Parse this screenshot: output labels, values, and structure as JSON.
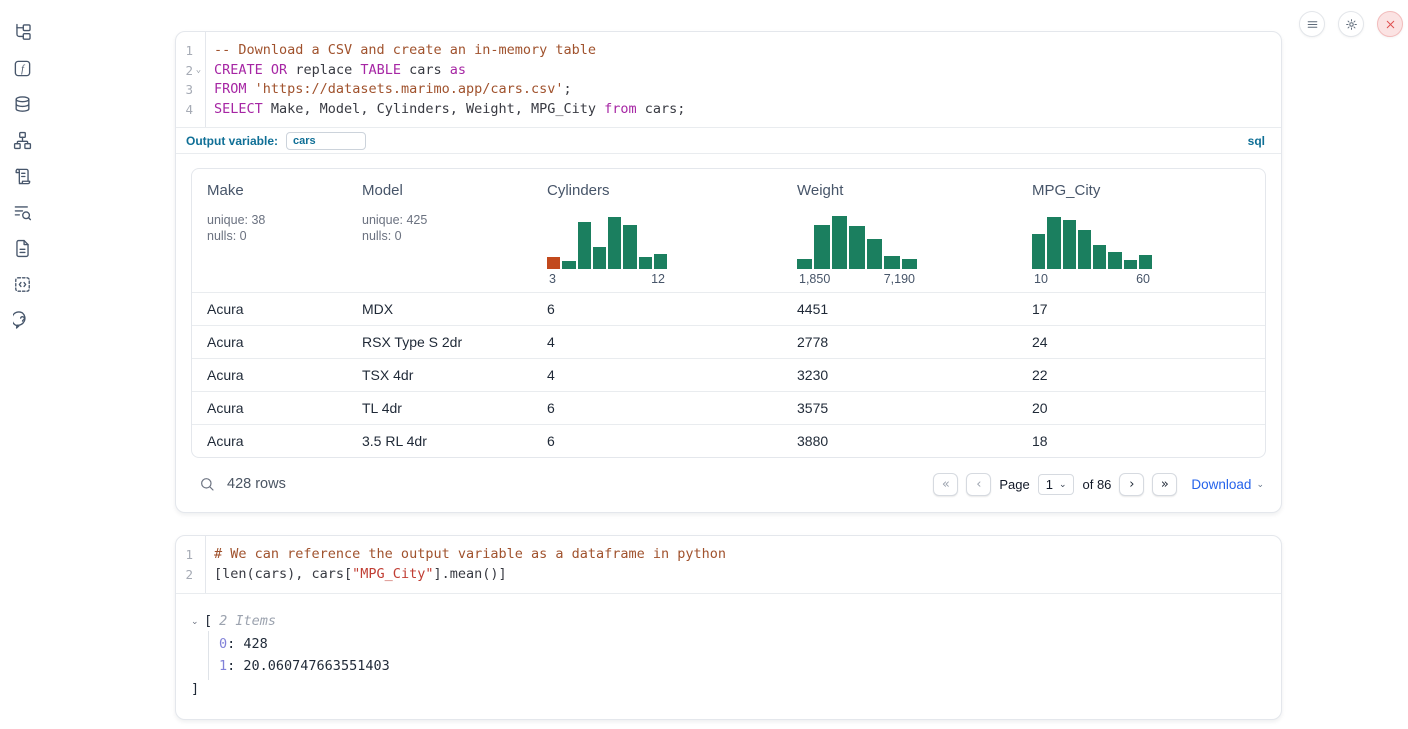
{
  "sidebar": {
    "icons": [
      "file-tree",
      "function-square",
      "database",
      "dependency-graph",
      "scroll-log",
      "text-search",
      "document",
      "code-snippets",
      "help"
    ]
  },
  "window_controls": {
    "icons": [
      "menu",
      "settings",
      "close"
    ]
  },
  "colors": {
    "keyword": "#a626a4",
    "comment": "#a0522d",
    "sql_string": "#a0522d",
    "python_string": "#c03d33",
    "histogram_green": "#1b7f5f",
    "histogram_highlight": "#c2491d",
    "download_blue": "#2563eb",
    "label_blue": "#0f6f96",
    "close_red": "#df5050"
  },
  "cells": [
    {
      "type": "sql",
      "code_lines": [
        {
          "num": "1",
          "fold": false,
          "tokens": [
            {
              "c": "com",
              "t": "-- Download a CSV and create an in-memory table"
            }
          ]
        },
        {
          "num": "2",
          "fold": true,
          "tokens": [
            {
              "c": "kw",
              "t": "CREATE"
            },
            {
              "c": "pl",
              "t": " "
            },
            {
              "c": "kw",
              "t": "OR"
            },
            {
              "c": "pl",
              "t": " replace "
            },
            {
              "c": "kw",
              "t": "TABLE"
            },
            {
              "c": "pl",
              "t": " cars "
            },
            {
              "c": "kw",
              "t": "as"
            }
          ]
        },
        {
          "num": "3",
          "fold": false,
          "tokens": [
            {
              "c": "kw",
              "t": "FROM"
            },
            {
              "c": "pl",
              "t": " "
            },
            {
              "c": "str",
              "t": "'https://datasets.marimo.app/cars.csv'"
            },
            {
              "c": "pl",
              "t": ";"
            }
          ]
        },
        {
          "num": "4",
          "fold": false,
          "tokens": [
            {
              "c": "kw",
              "t": "SELECT"
            },
            {
              "c": "pl",
              "t": " Make, Model, Cylinders, Weight, MPG_City "
            },
            {
              "c": "kw",
              "t": "from"
            },
            {
              "c": "pl",
              "t": " cars;"
            }
          ]
        }
      ],
      "output_variable_label": "Output variable:",
      "output_variable_value": "cars",
      "language_badge": "sql",
      "table": {
        "columns": [
          {
            "name": "Make",
            "stats": [
              "unique: 38",
              "nulls: 0"
            ]
          },
          {
            "name": "Model",
            "stats": [
              "unique: 425",
              "nulls: 0"
            ]
          },
          {
            "name": "Cylinders",
            "histogram": {
              "heights": [
                0.22,
                0.14,
                0.86,
                0.4,
                0.95,
                0.8,
                0.22,
                0.28
              ],
              "highlight_first": true,
              "min_label": "3",
              "max_label": "12"
            }
          },
          {
            "name": "Weight",
            "histogram": {
              "heights": [
                0.18,
                0.8,
                0.97,
                0.78,
                0.54,
                0.24,
                0.18
              ],
              "highlight_first": false,
              "min_label": "1,850",
              "max_label": "7,190"
            }
          },
          {
            "name": "MPG_City",
            "histogram": {
              "heights": [
                0.64,
                0.95,
                0.89,
                0.7,
                0.44,
                0.31,
                0.16,
                0.26
              ],
              "highlight_first": false,
              "min_label": "10",
              "max_label": "60"
            }
          }
        ],
        "rows": [
          [
            "Acura",
            "MDX",
            "6",
            "4451",
            "17"
          ],
          [
            "Acura",
            "RSX Type S 2dr",
            "4",
            "2778",
            "24"
          ],
          [
            "Acura",
            "TSX 4dr",
            "4",
            "3230",
            "22"
          ],
          [
            "Acura",
            "TL 4dr",
            "6",
            "3575",
            "20"
          ],
          [
            "Acura",
            "3.5 RL 4dr",
            "6",
            "3880",
            "18"
          ]
        ],
        "footer": {
          "row_count": "428 rows",
          "first_label": "«",
          "prev_label": "‹",
          "page_label": "Page",
          "page_value": "1",
          "page_caret": "⌄",
          "of_label": "of 86",
          "next_label": "›",
          "last_label": "»",
          "download_label": "Download",
          "download_caret": "⌄"
        }
      }
    },
    {
      "type": "python",
      "code_lines": [
        {
          "num": "1",
          "fold": false,
          "tokens": [
            {
              "c": "com",
              "t": "# We can reference the output variable as a dataframe in python"
            }
          ]
        },
        {
          "num": "2",
          "fold": false,
          "tokens": [
            {
              "c": "pl",
              "t": "[len(cars), cars["
            },
            {
              "c": "strred",
              "t": "\"MPG_City\""
            },
            {
              "c": "pl",
              "t": "].mean()]"
            }
          ]
        }
      ],
      "output_tree": {
        "collapse_caret": "⌄",
        "bracket_open": "[",
        "items_label": "2 Items",
        "entries": [
          {
            "key": "0",
            "sep": ": ",
            "value": "428"
          },
          {
            "key": "1",
            "sep": ": ",
            "value": "20.060747663551403"
          }
        ],
        "bracket_close": "]"
      }
    }
  ]
}
